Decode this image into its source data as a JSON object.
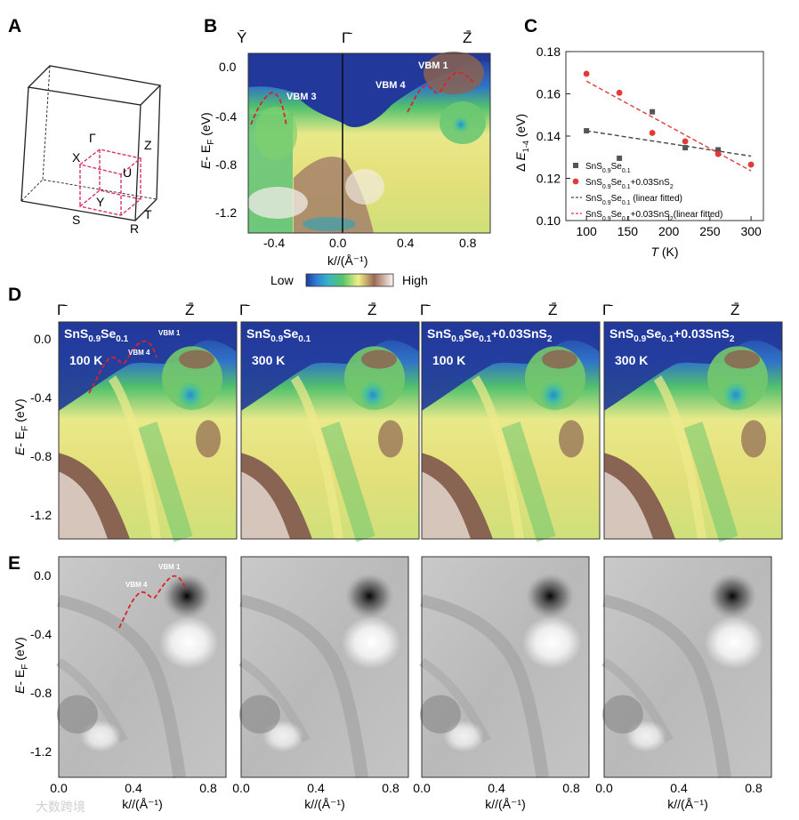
{
  "panel_labels": [
    "A",
    "B",
    "C",
    "D",
    "E"
  ],
  "panel_a": {
    "points": [
      "Γ",
      "Z",
      "X",
      "U",
      "Y",
      "S",
      "T",
      "R"
    ]
  },
  "panel_b": {
    "symmetry_points": [
      "Ῡ",
      "Γ̄",
      "Z̄"
    ],
    "annotations": [
      "VBM 3",
      "VBM 4",
      "VBM 1"
    ],
    "ylabel_main": "E",
    "ylabel_rest": "- E",
    "ylabel_sub": "F",
    "ylabel_unit": " (eV)",
    "yticks": [
      "0.0",
      "-0.4",
      "-0.8",
      "-1.2"
    ],
    "xticks": [
      "-0.4",
      "0.0",
      "0.4",
      "0.8"
    ],
    "xlabel": "k//(Å⁻¹)"
  },
  "colorbar": {
    "low": "Low",
    "high": "High"
  },
  "panel_d": {
    "symmetry_points": [
      "Γ̄",
      "Z̄"
    ],
    "panels": [
      {
        "sample": "SnS0.9Se0.1",
        "temp": "100 K"
      },
      {
        "sample": "SnS0.9Se0.1",
        "temp": "300 K"
      },
      {
        "sample": "SnS0.9Se0.1+0.03SnS2",
        "temp": "100 K"
      },
      {
        "sample": "SnS0.9Se0.1+0.03SnS2",
        "temp": "300 K"
      }
    ],
    "annotations": [
      "VBM 4",
      "VBM 1"
    ],
    "yticks": [
      "0.0",
      "-0.4",
      "-0.8",
      "-1.2"
    ]
  },
  "panel_e": {
    "annotations": [
      "VBM 4",
      "VBM 1"
    ],
    "yticks": [
      "0.0",
      "-0.4",
      "-0.8",
      "-1.2"
    ],
    "xticks": [
      "0.0",
      "0.4",
      "0.8"
    ],
    "xlabel": "k//(Å⁻¹)"
  },
  "chart_data": {
    "type": "scatter",
    "title": "",
    "xlabel": "T (K)",
    "ylabel": "Δ E1-4 (eV)",
    "xlim": [
      75,
      315
    ],
    "ylim": [
      0.1,
      0.18
    ],
    "xticks": [
      100,
      150,
      200,
      250,
      300
    ],
    "yticks": [
      0.1,
      0.12,
      0.14,
      0.16,
      0.18
    ],
    "legend_position": "bottom-left",
    "series": [
      {
        "name": "SnS0.9Se0.1",
        "marker": "square",
        "color": "#555555",
        "points": [
          [
            100,
            0.1425
          ],
          [
            140,
            0.1295
          ],
          [
            180,
            0.1515
          ],
          [
            220,
            0.1345
          ],
          [
            260,
            0.1335
          ]
        ]
      },
      {
        "name": "SnS0.9Se0.1+0.03SnS2",
        "marker": "circle",
        "color": "#e03a3a",
        "points": [
          [
            100,
            0.1695
          ],
          [
            140,
            0.1605
          ],
          [
            180,
            0.1415
          ],
          [
            220,
            0.1375
          ],
          [
            260,
            0.1315
          ],
          [
            300,
            0.1265
          ]
        ]
      }
    ],
    "fits": [
      {
        "name": "SnS0.9Se0.1 (linear fitted)",
        "color": "#444444",
        "from": [
          100,
          0.1425
        ],
        "to": [
          300,
          0.1305
        ]
      },
      {
        "name": "SnS0.9Se0.1+0.03SnS2(linear fitted)",
        "color": "#e03a3a",
        "from": [
          100,
          0.166
        ],
        "to": [
          300,
          0.1235
        ]
      }
    ]
  },
  "watermark": "大数跨境"
}
